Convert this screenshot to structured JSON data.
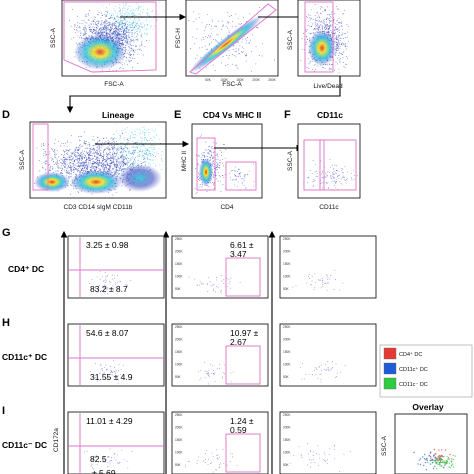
{
  "panel_letters": [
    "D",
    "E",
    "F",
    "G",
    "H",
    "I"
  ],
  "titles": {
    "lineage": "Lineage",
    "cd4_mhc": "CD4 Vs MHC II",
    "cd11c": "CD11c"
  },
  "axis_labels": {
    "ssc_a": "SSC-A",
    "fsc_a": "FSC-A",
    "fsc_h": "FSC-H",
    "live_dead": "Live/Dead",
    "lineage_x": "CD3 CD14 sIgM CD11b",
    "mhc_ii": "MHC II",
    "cd4": "CD4",
    "cd11c": "CD11c",
    "cd172a": "CD172a"
  },
  "tick_labels": [
    "50K",
    "100K",
    "150K",
    "200K",
    "250K"
  ],
  "rows": [
    {
      "label": "CD4⁺ DC",
      "q_upper": "3.25 ± 0.98",
      "q_lower": "83.2 ± 8.7",
      "gate_line1": "6.61 ±",
      "gate_line2": "3.47"
    },
    {
      "label": "CD11c⁺ DC",
      "q_upper": "54.6 ± 8.07",
      "q_lower": "31.55 ± 4.9",
      "gate_line1": "10.97 ±",
      "gate_line2": "2.67"
    },
    {
      "label": "CD11c⁻ DC",
      "q_upper": "11.01 ± 4.29",
      "q_lower": "82.5",
      "q_lower_2": "± 5.69",
      "gate_line1": "1.24 ±",
      "gate_line2": "0.59"
    }
  ],
  "legend": {
    "items": [
      {
        "label": "CD4⁺ DC",
        "color": "#e53935"
      },
      {
        "label": "CD11c⁺ DC",
        "color": "#1e5bd6"
      },
      {
        "label": "CD11c⁻ DC",
        "color": "#2ecc40"
      }
    ],
    "overlay_label": "Overlay"
  },
  "colors": {
    "gate": "#e070c8",
    "density_low": "#2838b8",
    "density_mid": "#30c8e0",
    "density_high": "#f5e020",
    "density_peak": "#e83020",
    "dots": "#4a58c8"
  }
}
